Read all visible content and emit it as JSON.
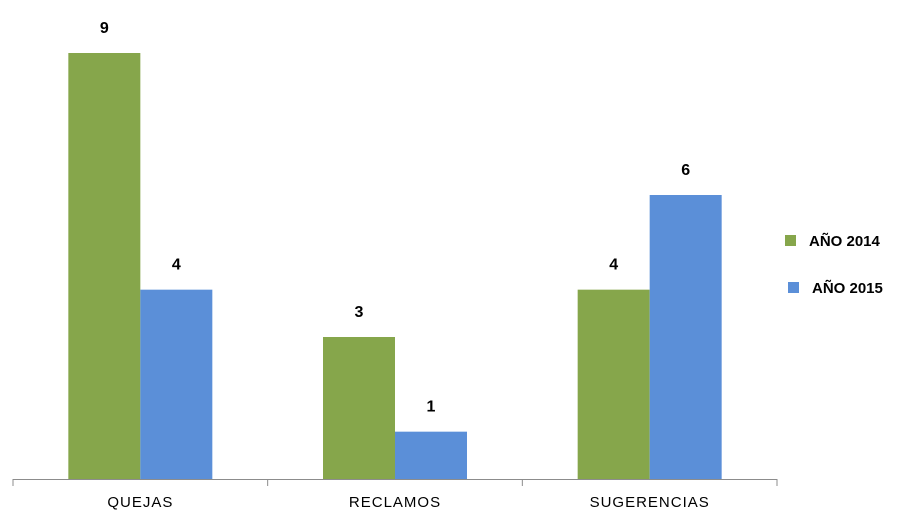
{
  "chart_data": {
    "type": "bar",
    "categories": [
      "QUEJAS",
      "RECLAMOS",
      "SUGERENCIAS"
    ],
    "series": [
      {
        "name": "AÑO 2014",
        "values": [
          9,
          3,
          4
        ],
        "color": "#86A64B"
      },
      {
        "name": "AÑO 2015",
        "values": [
          4,
          1,
          6
        ],
        "color": "#5B8FD8"
      }
    ],
    "ylim": [
      0,
      9
    ],
    "grid": false,
    "legend_position": "right",
    "data_labels": true
  }
}
